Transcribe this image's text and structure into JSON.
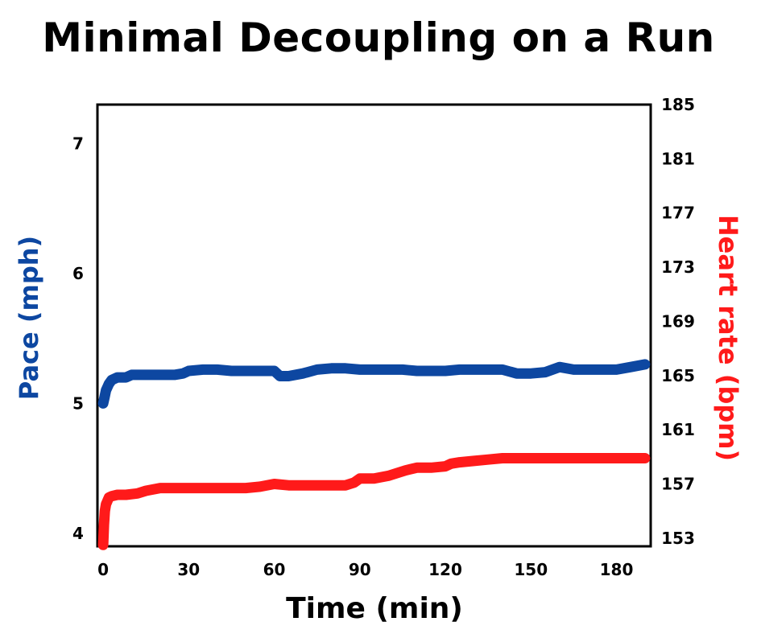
{
  "chart_data": {
    "type": "line",
    "title": "Minimal Decoupling on a Run",
    "xlabel": "Time (min)",
    "ylabel_left": "Pace (mph)",
    "ylabel_right": "Heart rate (bpm)",
    "x_ticks": [
      0,
      30,
      60,
      90,
      120,
      150,
      180
    ],
    "y_left_ticks": [
      4,
      5,
      6,
      7
    ],
    "y_right_ticks": [
      153,
      157,
      161,
      165,
      169,
      173,
      177,
      181,
      185
    ],
    "xlim": [
      -2,
      192
    ],
    "ylim_left": [
      3.9,
      7.3
    ],
    "ylim_right": [
      152.4,
      185
    ],
    "grid": false,
    "colors": {
      "pace": "#0d47a1",
      "heart_rate": "#ff1a1a",
      "pace_label": "#0d47a1",
      "hr_label": "#ff1a1a"
    },
    "series": [
      {
        "name": "Pace (mph)",
        "axis": "left",
        "x": [
          0,
          0.5,
          1,
          2,
          3,
          5,
          8,
          10,
          15,
          20,
          25,
          28,
          30,
          35,
          40,
          45,
          50,
          55,
          60,
          62,
          65,
          70,
          75,
          80,
          85,
          90,
          95,
          100,
          105,
          110,
          115,
          120,
          125,
          130,
          135,
          140,
          145,
          150,
          155,
          160,
          165,
          170,
          175,
          180,
          185,
          190
        ],
        "y": [
          5.0,
          5.05,
          5.1,
          5.15,
          5.18,
          5.2,
          5.2,
          5.22,
          5.22,
          5.22,
          5.22,
          5.23,
          5.25,
          5.26,
          5.26,
          5.25,
          5.25,
          5.25,
          5.25,
          5.21,
          5.21,
          5.23,
          5.26,
          5.27,
          5.27,
          5.26,
          5.26,
          5.26,
          5.26,
          5.25,
          5.25,
          5.25,
          5.26,
          5.26,
          5.26,
          5.26,
          5.23,
          5.23,
          5.24,
          5.28,
          5.26,
          5.26,
          5.26,
          5.26,
          5.28,
          5.3
        ]
      },
      {
        "name": "Heart rate (bpm)",
        "axis": "right",
        "x": [
          0,
          0.3,
          0.6,
          1,
          2,
          3,
          5,
          8,
          12,
          15,
          20,
          30,
          40,
          50,
          55,
          60,
          65,
          70,
          80,
          85,
          88,
          90,
          95,
          100,
          103,
          106,
          110,
          115,
          120,
          122,
          125,
          130,
          135,
          140,
          150,
          160,
          170,
          180,
          190
        ],
        "y": [
          152.5,
          154,
          155,
          155.5,
          156,
          156.1,
          156.2,
          156.2,
          156.3,
          156.5,
          156.7,
          156.7,
          156.7,
          156.7,
          156.8,
          157,
          156.9,
          156.9,
          156.9,
          156.9,
          157.1,
          157.4,
          157.4,
          157.6,
          157.8,
          158,
          158.2,
          158.2,
          158.3,
          158.5,
          158.6,
          158.7,
          158.8,
          158.9,
          158.9,
          158.9,
          158.9,
          158.9,
          158.9
        ]
      }
    ]
  }
}
